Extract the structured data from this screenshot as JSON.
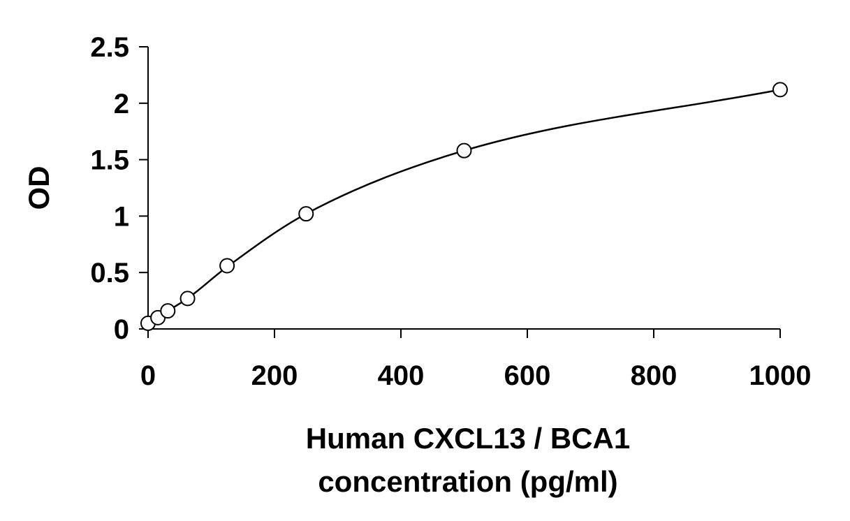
{
  "chart_data": {
    "type": "scatter",
    "title": "",
    "xlabel_lines": [
      "Human CXCL13 / BCA1",
      "concentration (pg/ml)"
    ],
    "ylabel": "OD",
    "xlim": [
      0,
      1000
    ],
    "ylim": [
      0,
      2.5
    ],
    "xticks": [
      0,
      200,
      400,
      600,
      800,
      1000
    ],
    "xtick_labels": [
      "0",
      "200",
      "400",
      "600",
      "800",
      "1000"
    ],
    "yticks": [
      0,
      0.5,
      1,
      1.5,
      2,
      2.5
    ],
    "ytick_labels": [
      "0",
      "0.5",
      "1",
      "1.5",
      "2",
      "2.5"
    ],
    "grid": false,
    "legend": "none",
    "series": [
      {
        "marker": "open-circle",
        "x": [
          0,
          15.6,
          31.25,
          62.5,
          125,
          250,
          500,
          1000
        ],
        "y": [
          0.05,
          0.1,
          0.16,
          0.27,
          0.56,
          1.02,
          1.58,
          2.12
        ]
      }
    ],
    "fit_curve": {
      "type": "smooth",
      "x": [
        0,
        15.6,
        31.25,
        62.5,
        125,
        250,
        500,
        1000
      ],
      "y": [
        0.03,
        0.1,
        0.16,
        0.27,
        0.55,
        1.02,
        1.58,
        2.12
      ]
    },
    "colors": {
      "marker_stroke": "#000000",
      "marker_fill": "#ffffff",
      "line": "#000000",
      "background": "#ffffff"
    }
  }
}
